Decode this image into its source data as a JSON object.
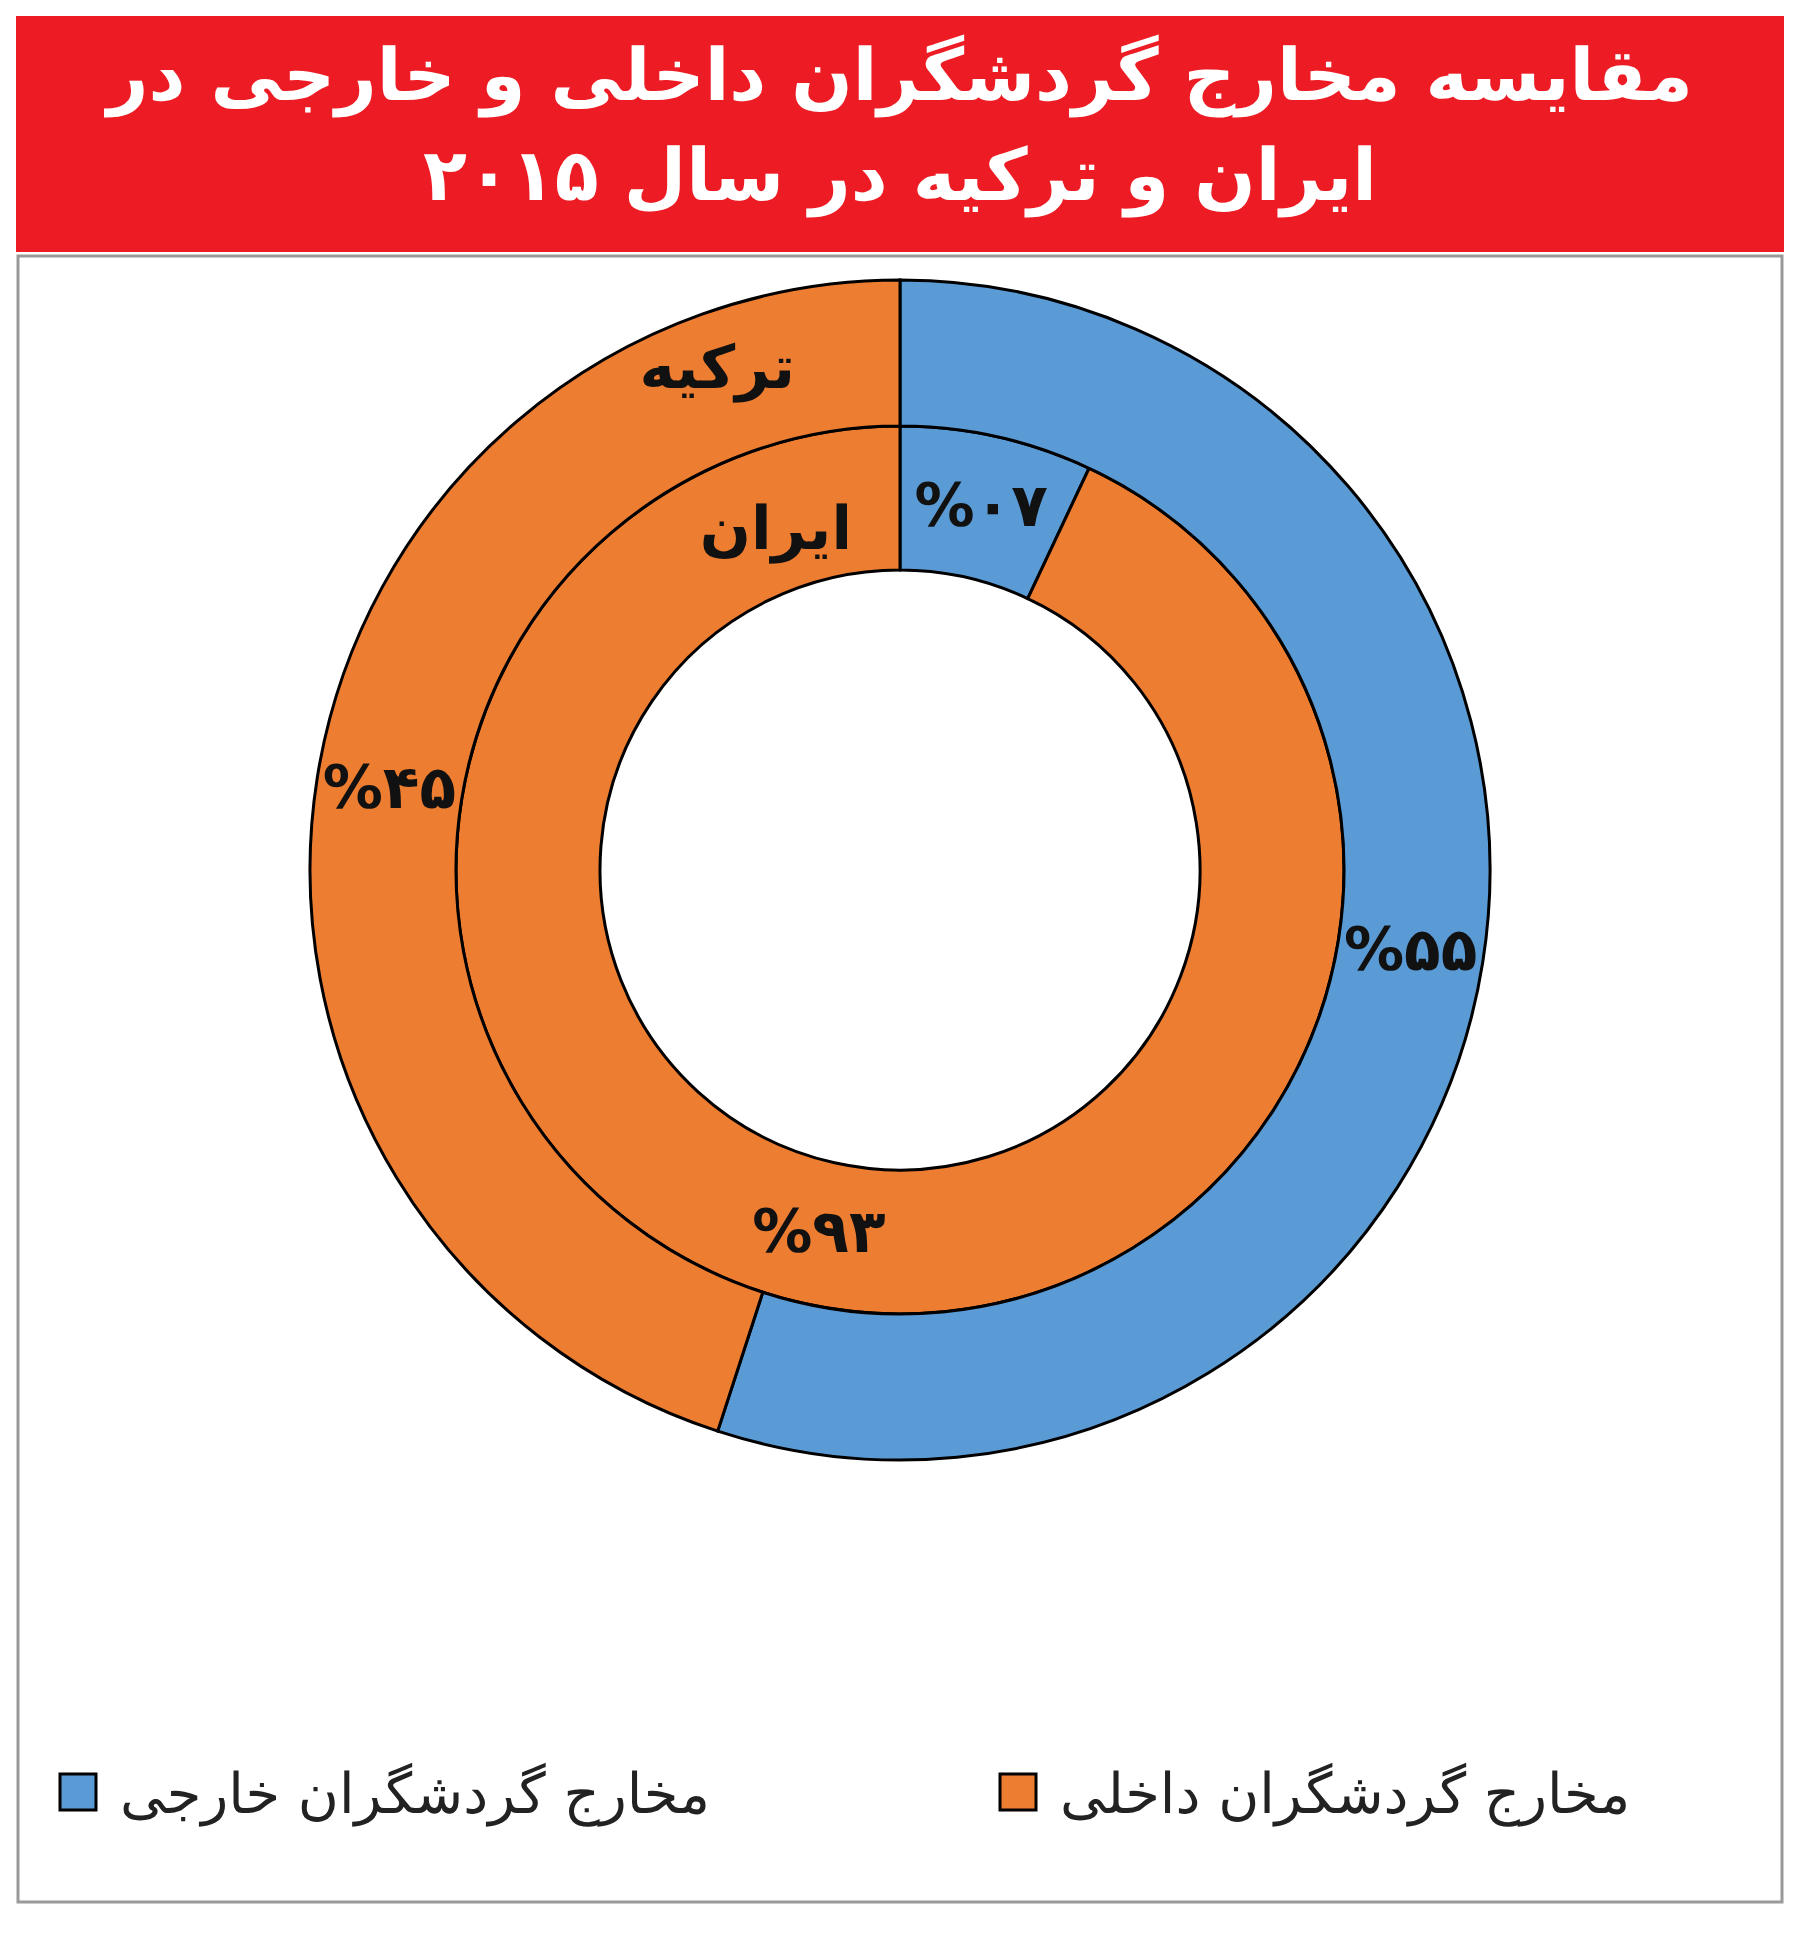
{
  "chart_data": {
    "type": "donut",
    "title": "مقایسه مخارج گردشگران داخلی و خارجی در ایران و ترکیه در سال ۲۰۱۵",
    "categories": [
      "مخارج گردشگران خارجی",
      "مخارج گردشگران داخلی"
    ],
    "colors": [
      "#5b9bd5",
      "#ed7d31"
    ],
    "series": [
      {
        "name": "ایران",
        "values": [
          7,
          93
        ],
        "value_labels": [
          "%۰۷",
          "%۹۳"
        ]
      },
      {
        "name": "ترکیه",
        "values": [
          55,
          45
        ],
        "value_labels": [
          "%۵۵",
          "%۴۵"
        ]
      }
    ],
    "legend": "bottom"
  }
}
